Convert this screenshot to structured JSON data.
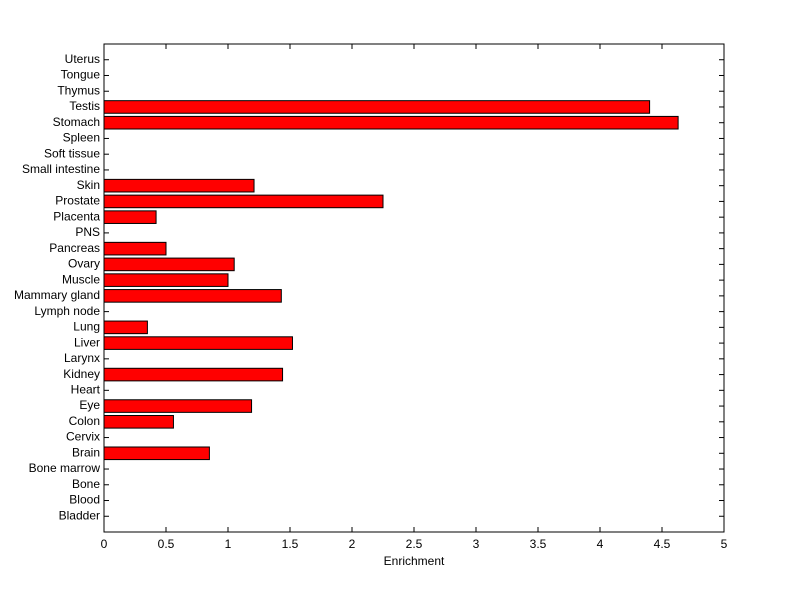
{
  "chart_data": {
    "type": "barh",
    "xlabel": "Enrichment",
    "categories": [
      "Bladder",
      "Blood",
      "Bone",
      "Bone marrow",
      "Brain",
      "Cervix",
      "Colon",
      "Eye",
      "Heart",
      "Kidney",
      "Larynx",
      "Liver",
      "Lung",
      "Lymph node",
      "Mammary gland",
      "Muscle",
      "Ovary",
      "Pancreas",
      "PNS",
      "Placenta",
      "Prostate",
      "Skin",
      "Small intestine",
      "Soft tissue",
      "Spleen",
      "Stomach",
      "Testis",
      "Thymus",
      "Tongue",
      "Uterus"
    ],
    "values": [
      0,
      0,
      0,
      0,
      0.85,
      0,
      0.56,
      1.19,
      0,
      1.44,
      0,
      1.52,
      0.35,
      0,
      1.43,
      1.0,
      1.05,
      0.5,
      0,
      0.42,
      2.25,
      1.21,
      0,
      0,
      0,
      4.63,
      4.4,
      0,
      0,
      0
    ],
    "color": "#ff0000",
    "xlim": [
      0,
      5
    ],
    "xticks": [
      0,
      0.5,
      1,
      1.5,
      2,
      2.5,
      3,
      3.5,
      4,
      4.5,
      5
    ]
  }
}
